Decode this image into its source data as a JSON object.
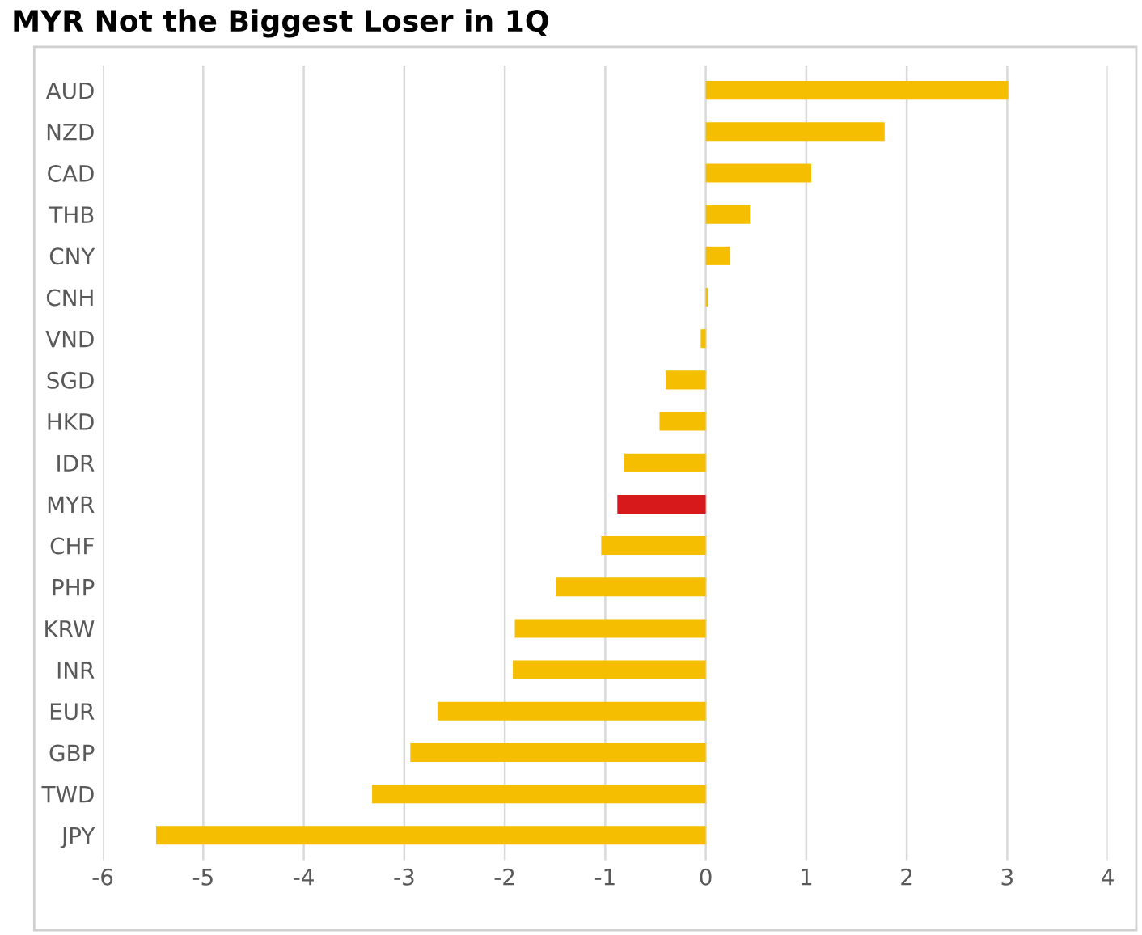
{
  "chart_data": {
    "type": "bar",
    "orientation": "horizontal",
    "title": "MYR Not the Biggest Loser in 1Q",
    "categories": [
      "AUD",
      "NZD",
      "CAD",
      "THB",
      "CNY",
      "CNH",
      "VND",
      "SGD",
      "HKD",
      "IDR",
      "MYR",
      "CHF",
      "PHP",
      "KRW",
      "INR",
      "EUR",
      "GBP",
      "TWD",
      "JPY"
    ],
    "values": [
      3.01,
      1.78,
      1.05,
      0.44,
      0.24,
      0.02,
      -0.05,
      -0.4,
      -0.46,
      -0.81,
      -0.88,
      -1.04,
      -1.49,
      -1.9,
      -1.92,
      -2.67,
      -2.94,
      -3.32,
      -5.47
    ],
    "colors": [
      "#f5be00",
      "#f5be00",
      "#f5be00",
      "#f5be00",
      "#f5be00",
      "#f5be00",
      "#f5be00",
      "#f5be00",
      "#f5be00",
      "#f5be00",
      "#d7191c",
      "#f5be00",
      "#f5be00",
      "#f5be00",
      "#f5be00",
      "#f5be00",
      "#f5be00",
      "#f5be00",
      "#f5be00"
    ],
    "xlim": [
      -6,
      4
    ],
    "xticks": [
      -6,
      -5,
      -4,
      -3,
      -2,
      -1,
      0,
      1,
      2,
      3,
      4
    ],
    "grid": "x",
    "legend": false
  }
}
